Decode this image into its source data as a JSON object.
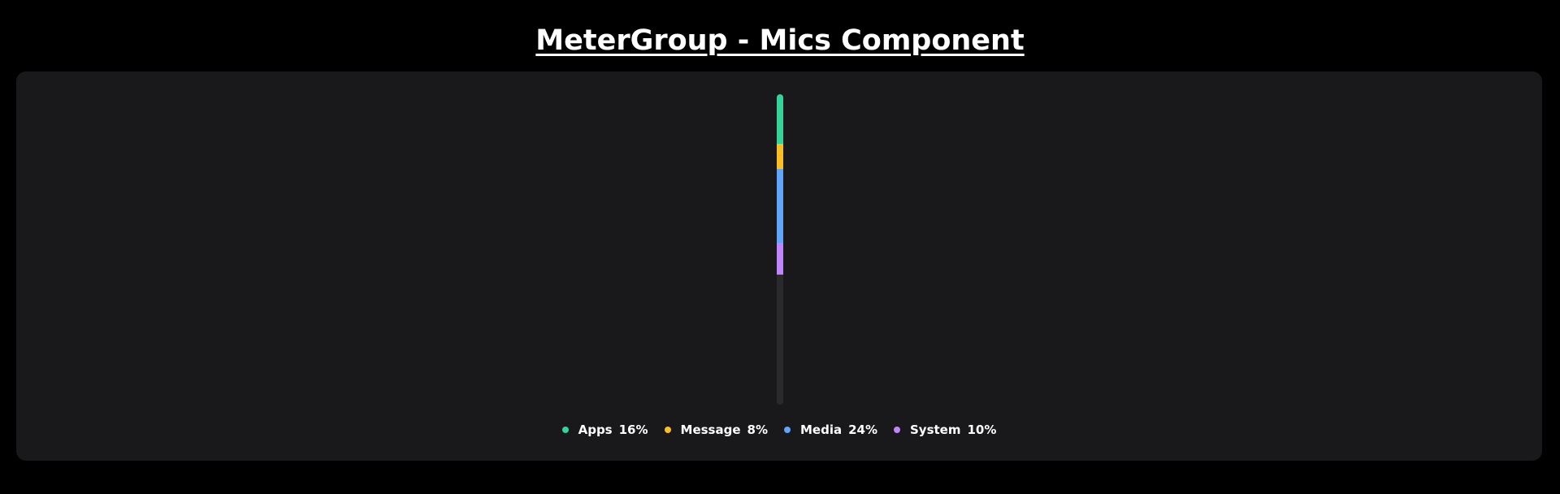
{
  "header": {
    "title": "MeterGroup - Mics Component"
  },
  "meter": {
    "orientation": "vertical",
    "track_color": "#2a2a2c",
    "items": [
      {
        "label": "Apps",
        "value_text": "16%",
        "value": 16,
        "color": "#34d399",
        "icon": "circle-dot-icon"
      },
      {
        "label": "Message",
        "value_text": "8%",
        "value": 8,
        "color": "#fbbf24",
        "icon": "circle-dot-icon"
      },
      {
        "label": "Media",
        "value_text": "24%",
        "value": 24,
        "color": "#60a5fa",
        "icon": "circle-dot-icon"
      },
      {
        "label": "System",
        "value_text": "10%",
        "value": 10,
        "color": "#c084fc",
        "icon": "circle-dot-icon"
      }
    ]
  }
}
